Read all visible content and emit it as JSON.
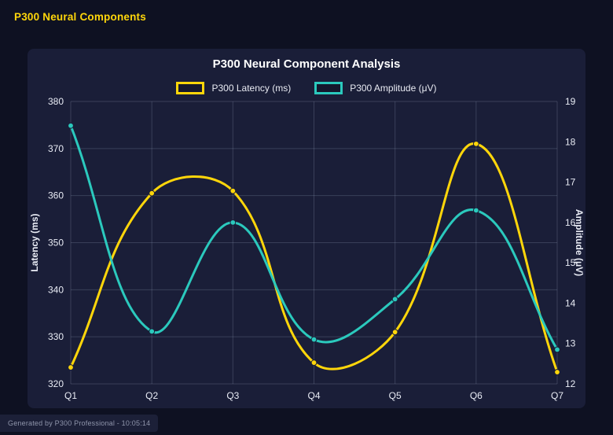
{
  "page": {
    "title": "P300 Neural Components",
    "footer": "Generated by P300 Professional - 10:05:14"
  },
  "theme": {
    "page_bg": "#0e1122",
    "panel_bg": "#1a1e38",
    "grid_color": "rgba(170,180,210,0.22)",
    "tick_color": "#e9ecf5",
    "axis_title_color": "#e9ecf5",
    "accent_yellow": "#ffd60a",
    "accent_teal": "#2bc9bd"
  },
  "chart_data": {
    "type": "line",
    "title": "P300 Neural Component Analysis",
    "categories": [
      "Q1",
      "Q2",
      "Q3",
      "Q4",
      "Q5",
      "Q6",
      "Q7"
    ],
    "series": [
      {
        "name": "P300 Latency (ms)",
        "axis": "left",
        "color": "#ffd60a",
        "values": [
          323.5,
          360.5,
          361,
          324.5,
          331,
          371,
          322.5
        ]
      },
      {
        "name": "P300 Amplitude (μV)",
        "axis": "right",
        "color": "#2bc9bd",
        "values": [
          18.4,
          13.3,
          16.0,
          13.1,
          14.1,
          16.3,
          12.85
        ]
      }
    ],
    "axes": {
      "left": {
        "label": "Latency (ms)",
        "min": 320,
        "max": 380,
        "step": 10
      },
      "right": {
        "label": "Amplitude (μV)",
        "min": 12,
        "max": 19,
        "step": 1
      }
    },
    "grid": true,
    "legend_position": "top",
    "line_tension": 0.4
  }
}
